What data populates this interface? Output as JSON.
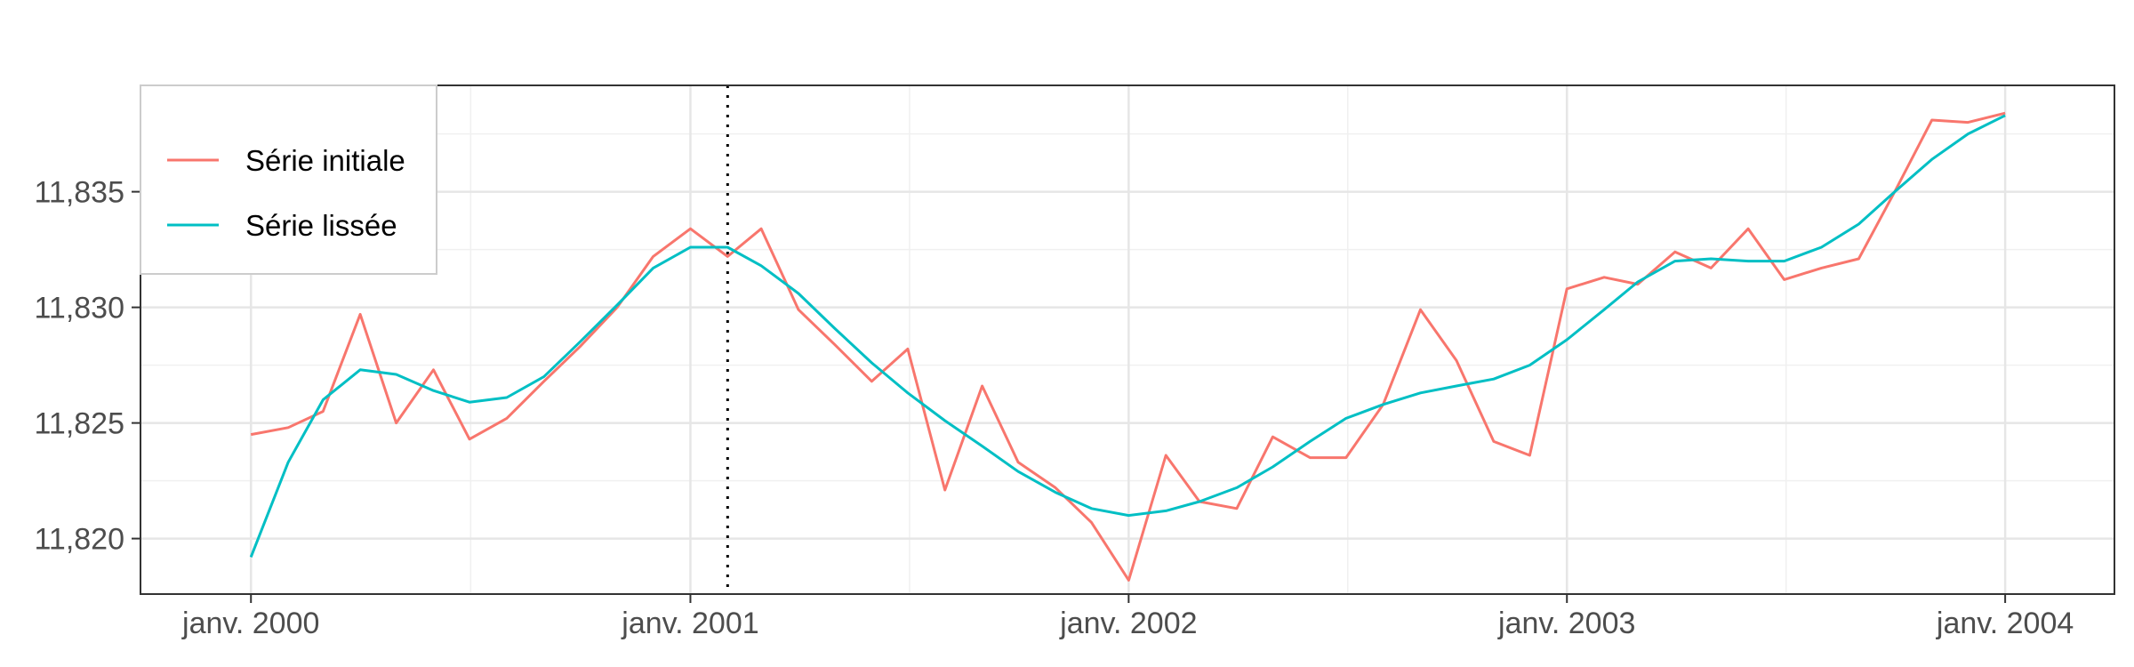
{
  "chart_data": {
    "type": "line",
    "title": "",
    "xlabel": "",
    "ylabel": "",
    "x_range": [
      "1999-10-01",
      "2004-04-01"
    ],
    "ylim": [
      11.8176,
      11.8396
    ],
    "x_ticks": [
      {
        "value": "2000-01-01",
        "label": "janv. 2000"
      },
      {
        "value": "2001-01-01",
        "label": "janv. 2001"
      },
      {
        "value": "2002-01-01",
        "label": "janv. 2002"
      },
      {
        "value": "2003-01-01",
        "label": "janv. 2003"
      },
      {
        "value": "2004-01-01",
        "label": "janv. 2004"
      }
    ],
    "y_ticks": [
      {
        "value": 11.82,
        "label": "11,820"
      },
      {
        "value": 11.825,
        "label": "11,825"
      },
      {
        "value": 11.83,
        "label": "11,830"
      },
      {
        "value": 11.835,
        "label": "11,835"
      }
    ],
    "vline": {
      "x": "2001-02-01",
      "style": "dotted"
    },
    "grid": true,
    "legend_position": "top-left",
    "x": [
      "2000-01",
      "2000-02",
      "2000-03",
      "2000-04",
      "2000-05",
      "2000-06",
      "2000-07",
      "2000-08",
      "2000-09",
      "2000-10",
      "2000-11",
      "2000-12",
      "2001-01",
      "2001-02",
      "2001-03",
      "2001-04",
      "2001-05",
      "2001-06",
      "2001-07",
      "2001-08",
      "2001-09",
      "2001-10",
      "2001-11",
      "2001-12",
      "2002-01",
      "2002-02",
      "2002-03",
      "2002-04",
      "2002-05",
      "2002-06",
      "2002-07",
      "2002-08",
      "2002-09",
      "2002-10",
      "2002-11",
      "2002-12",
      "2003-01",
      "2003-02",
      "2003-03",
      "2003-04",
      "2003-05",
      "2003-06",
      "2003-07",
      "2003-08",
      "2003-09",
      "2003-10",
      "2003-11",
      "2003-12",
      "2004-01"
    ],
    "series": [
      {
        "name": "Série initiale",
        "color": "#F8766D",
        "values": [
          11.8245,
          11.8248,
          11.8255,
          11.8297,
          11.825,
          11.8273,
          11.8243,
          11.8252,
          11.8268,
          11.8283,
          11.83,
          11.8322,
          11.8334,
          11.8322,
          11.8334,
          11.8299,
          11.8284,
          11.8268,
          11.8282,
          11.8221,
          11.8266,
          11.8233,
          11.8222,
          11.8207,
          11.8182,
          11.8236,
          11.8216,
          11.8213,
          11.8244,
          11.8235,
          11.8235,
          11.8258,
          11.8299,
          11.8277,
          11.8242,
          11.8236,
          11.8308,
          11.8313,
          11.831,
          11.8324,
          11.8317,
          11.8334,
          11.8312,
          11.8317,
          11.8321,
          11.835,
          11.8381,
          11.838,
          11.8384
        ]
      },
      {
        "name": "Série lissée",
        "color": "#00BFC4",
        "values": [
          11.8192,
          11.8233,
          11.826,
          11.8273,
          11.8271,
          11.8264,
          11.8259,
          11.8261,
          11.827,
          11.8285,
          11.8301,
          11.8317,
          11.8326,
          11.8326,
          11.8318,
          11.8306,
          11.8291,
          11.8276,
          11.8263,
          11.8251,
          11.824,
          11.8229,
          11.822,
          11.8213,
          11.821,
          11.8212,
          11.8216,
          11.8222,
          11.8231,
          11.8242,
          11.8252,
          11.8258,
          11.8263,
          11.8266,
          11.8269,
          11.8275,
          11.8286,
          11.8299,
          11.8311,
          11.832,
          11.8321,
          11.832,
          11.832,
          11.8326,
          11.8336,
          11.835,
          11.8364,
          11.8375,
          11.8383
        ]
      }
    ]
  }
}
